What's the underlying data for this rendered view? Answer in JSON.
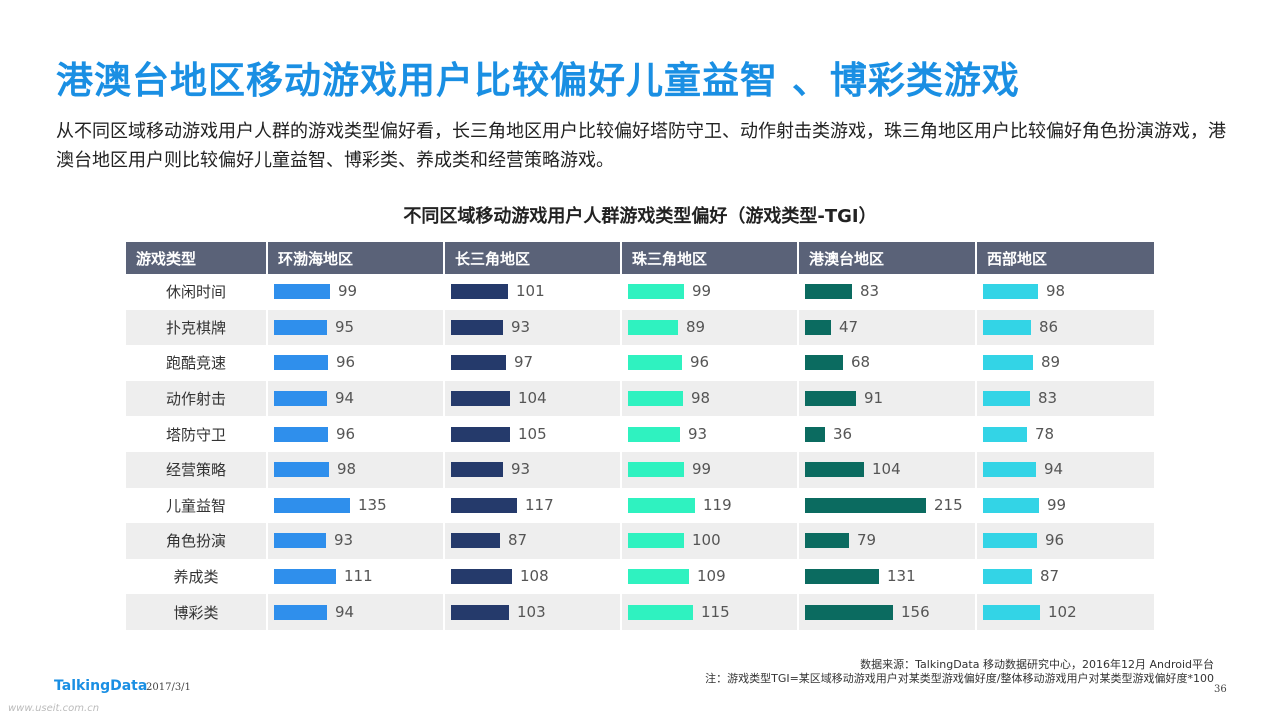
{
  "title": "港澳台地区移动游戏用户比较偏好儿童益智 、博彩类游戏",
  "intro": "从不同区域移动游戏用户人群的游戏类型偏好看，长三角地区用户比较偏好塔防守卫、动作射击类游戏，珠三角地区用户比较偏好角色扮演游戏，港澳台地区用户则比较偏好儿童益智、博彩类、养成类和经营策略游戏。",
  "footer": {
    "source": "数据来源：TalkingData 移动数据研究中心，2016年12月 Android平台",
    "note": "注：游戏类型TGI=某区域移动游戏用户对某类型游戏偏好度/整体移动游戏用户对某类型游戏偏好度*100",
    "logo": "TalkingData",
    "date": "2017/3/1",
    "page": "36",
    "watermark": "www.useit.com.cn"
  },
  "chart_data": {
    "type": "table",
    "title": "不同区域移动游戏用户人群游戏类型偏好（游戏类型-TGI）",
    "header_first": "游戏类型",
    "categories": [
      "休闲时间",
      "扑克棋牌",
      "跑酷竞速",
      "动作射击",
      "塔防守卫",
      "经营策略",
      "儿童益智",
      "角色扮演",
      "养成类",
      "博彩类"
    ],
    "series": [
      {
        "name": "环渤海地区",
        "color": "#2f8fec",
        "values": [
          99,
          95,
          96,
          94,
          96,
          98,
          135,
          93,
          111,
          94
        ]
      },
      {
        "name": "长三角地区",
        "color": "#253a6b",
        "values": [
          101,
          93,
          97,
          104,
          105,
          93,
          117,
          87,
          108,
          103
        ]
      },
      {
        "name": "珠三角地区",
        "color": "#2ff2c0",
        "values": [
          99,
          89,
          96,
          98,
          93,
          99,
          119,
          100,
          109,
          115
        ]
      },
      {
        "name": "港澳台地区",
        "color": "#0b6b60",
        "values": [
          83,
          47,
          68,
          91,
          36,
          104,
          215,
          79,
          131,
          156
        ]
      },
      {
        "name": "西部地区",
        "color": "#33d4e6",
        "values": [
          98,
          86,
          89,
          83,
          78,
          94,
          99,
          96,
          87,
          102
        ]
      }
    ],
    "scale_max": 215
  }
}
